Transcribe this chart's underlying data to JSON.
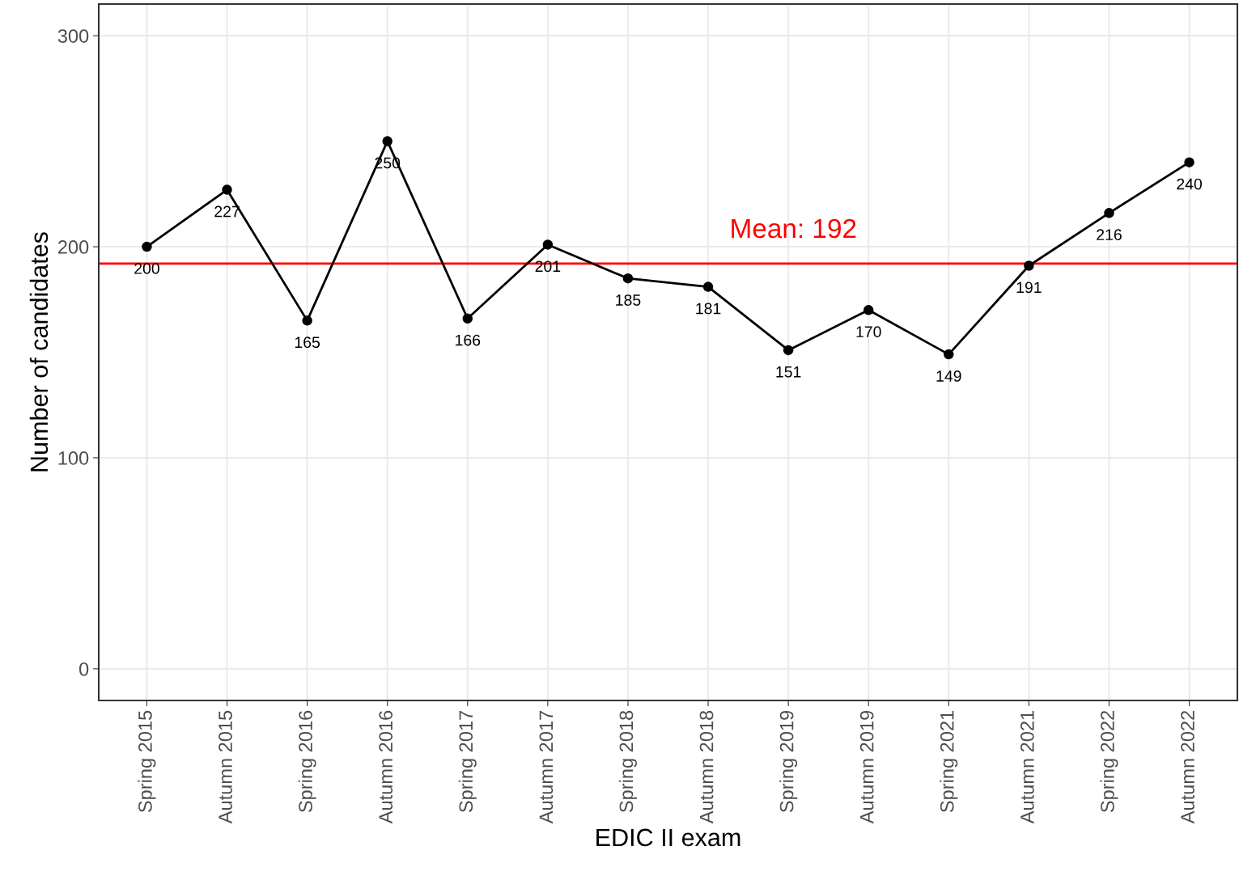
{
  "chart_data": {
    "type": "line",
    "xlabel": "EDIC II exam",
    "ylabel": "Number of candidates",
    "categories": [
      "Spring 2015",
      "Autumn 2015",
      "Spring 2016",
      "Autumn 2016",
      "Spring 2017",
      "Autumn 2017",
      "Spring 2018",
      "Autumn 2018",
      "Spring 2019",
      "Autumn 2019",
      "Spring 2021",
      "Autumn 2021",
      "Spring 2022",
      "Autumn 2022"
    ],
    "series": [
      {
        "color": "#000000",
        "values": [
          200,
          227,
          165,
          250,
          166,
          201,
          185,
          181,
          151,
          170,
          149,
          191,
          216,
          240
        ]
      }
    ],
    "ylim": [
      -15,
      315
    ],
    "yticks": [
      0,
      100,
      200,
      300
    ],
    "ref_lines": [
      {
        "axis": "y",
        "value": 192,
        "label": "Mean: 192",
        "color": "#ff0000",
        "line_style": "solid"
      }
    ],
    "data_labels": true,
    "grid": true,
    "marker": "circle",
    "line_style": "solid"
  }
}
